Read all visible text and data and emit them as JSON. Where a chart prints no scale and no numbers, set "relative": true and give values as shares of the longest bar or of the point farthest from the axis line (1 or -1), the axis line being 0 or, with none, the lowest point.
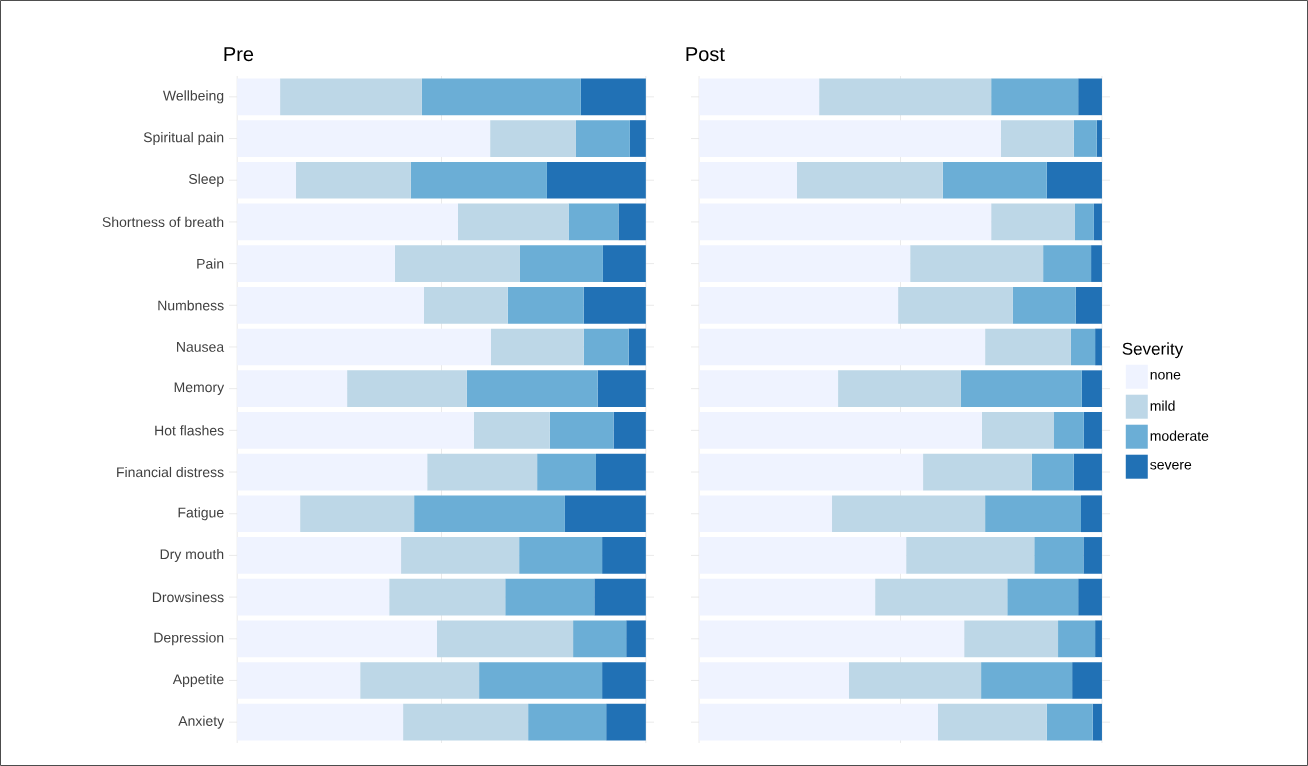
{
  "chart_data": [
    {
      "type": "bar",
      "orientation": "horizontal",
      "stacked": true,
      "relative": true,
      "title": "Pre",
      "grid": true,
      "tick_labels": "y",
      "legend": false,
      "categories": [
        "Wellbeing",
        "Spiritual pain",
        "Sleep",
        "Shortness of breath",
        "Pain",
        "Numbness",
        "Nausea",
        "Memory",
        "Hot flashes",
        "Financial distress",
        "Fatigue",
        "Dry mouth",
        "Drowsiness",
        "Depression",
        "Appetite",
        "Anxiety"
      ],
      "series": [
        {
          "color": "#eff3ff",
          "values": [
            0.105,
            0.619,
            0.144,
            0.54,
            0.386,
            0.457,
            0.621,
            0.269,
            0.579,
            0.465,
            0.154,
            0.401,
            0.372,
            0.489,
            0.301,
            0.406
          ]
        },
        {
          "color": "#bdd7e7",
          "values": [
            0.347,
            0.21,
            0.281,
            0.271,
            0.306,
            0.205,
            0.227,
            0.293,
            0.186,
            0.269,
            0.279,
            0.289,
            0.284,
            0.333,
            0.291,
            0.306
          ]
        },
        {
          "color": "#6baed6",
          "values": [
            0.389,
            0.132,
            0.333,
            0.122,
            0.203,
            0.186,
            0.11,
            0.32,
            0.156,
            0.144,
            0.369,
            0.203,
            0.218,
            0.13,
            0.301,
            0.191
          ]
        },
        {
          "color": "#2171b5",
          "values": [
            0.159,
            0.039,
            0.242,
            0.067,
            0.105,
            0.152,
            0.042,
            0.118,
            0.079,
            0.122,
            0.198,
            0.107,
            0.126,
            0.048,
            0.107,
            0.097
          ]
        }
      ]
    },
    {
      "type": "bar",
      "orientation": "horizontal",
      "stacked": true,
      "relative": true,
      "title": "Post",
      "grid": true,
      "tick_labels": false,
      "legend": "right",
      "legend_title": "Severity",
      "categories": [
        null,
        null,
        null,
        null,
        null,
        null,
        null,
        null,
        null,
        null,
        null,
        null,
        null,
        null,
        null,
        null
      ],
      "series": [
        {
          "name": "none",
          "color": "#eff3ff",
          "values": [
            0.298,
            0.749,
            0.243,
            0.725,
            0.524,
            0.494,
            0.71,
            0.345,
            0.702,
            0.556,
            0.33,
            0.514,
            0.437,
            0.658,
            0.372,
            0.593
          ]
        },
        {
          "name": "mild",
          "color": "#bdd7e7",
          "values": [
            0.427,
            0.181,
            0.362,
            0.208,
            0.33,
            0.285,
            0.213,
            0.305,
            0.179,
            0.27,
            0.38,
            0.318,
            0.328,
            0.233,
            0.328,
            0.27
          ]
        },
        {
          "name": "moderate",
          "color": "#6baed6",
          "values": [
            0.216,
            0.057,
            0.258,
            0.047,
            0.119,
            0.156,
            0.06,
            0.3,
            0.074,
            0.104,
            0.238,
            0.122,
            0.176,
            0.092,
            0.226,
            0.114
          ]
        },
        {
          "name": "severe",
          "color": "#2171b5",
          "values": [
            0.059,
            0.013,
            0.137,
            0.02,
            0.027,
            0.065,
            0.017,
            0.05,
            0.045,
            0.07,
            0.052,
            0.046,
            0.059,
            0.017,
            0.074,
            0.023
          ]
        }
      ]
    }
  ]
}
